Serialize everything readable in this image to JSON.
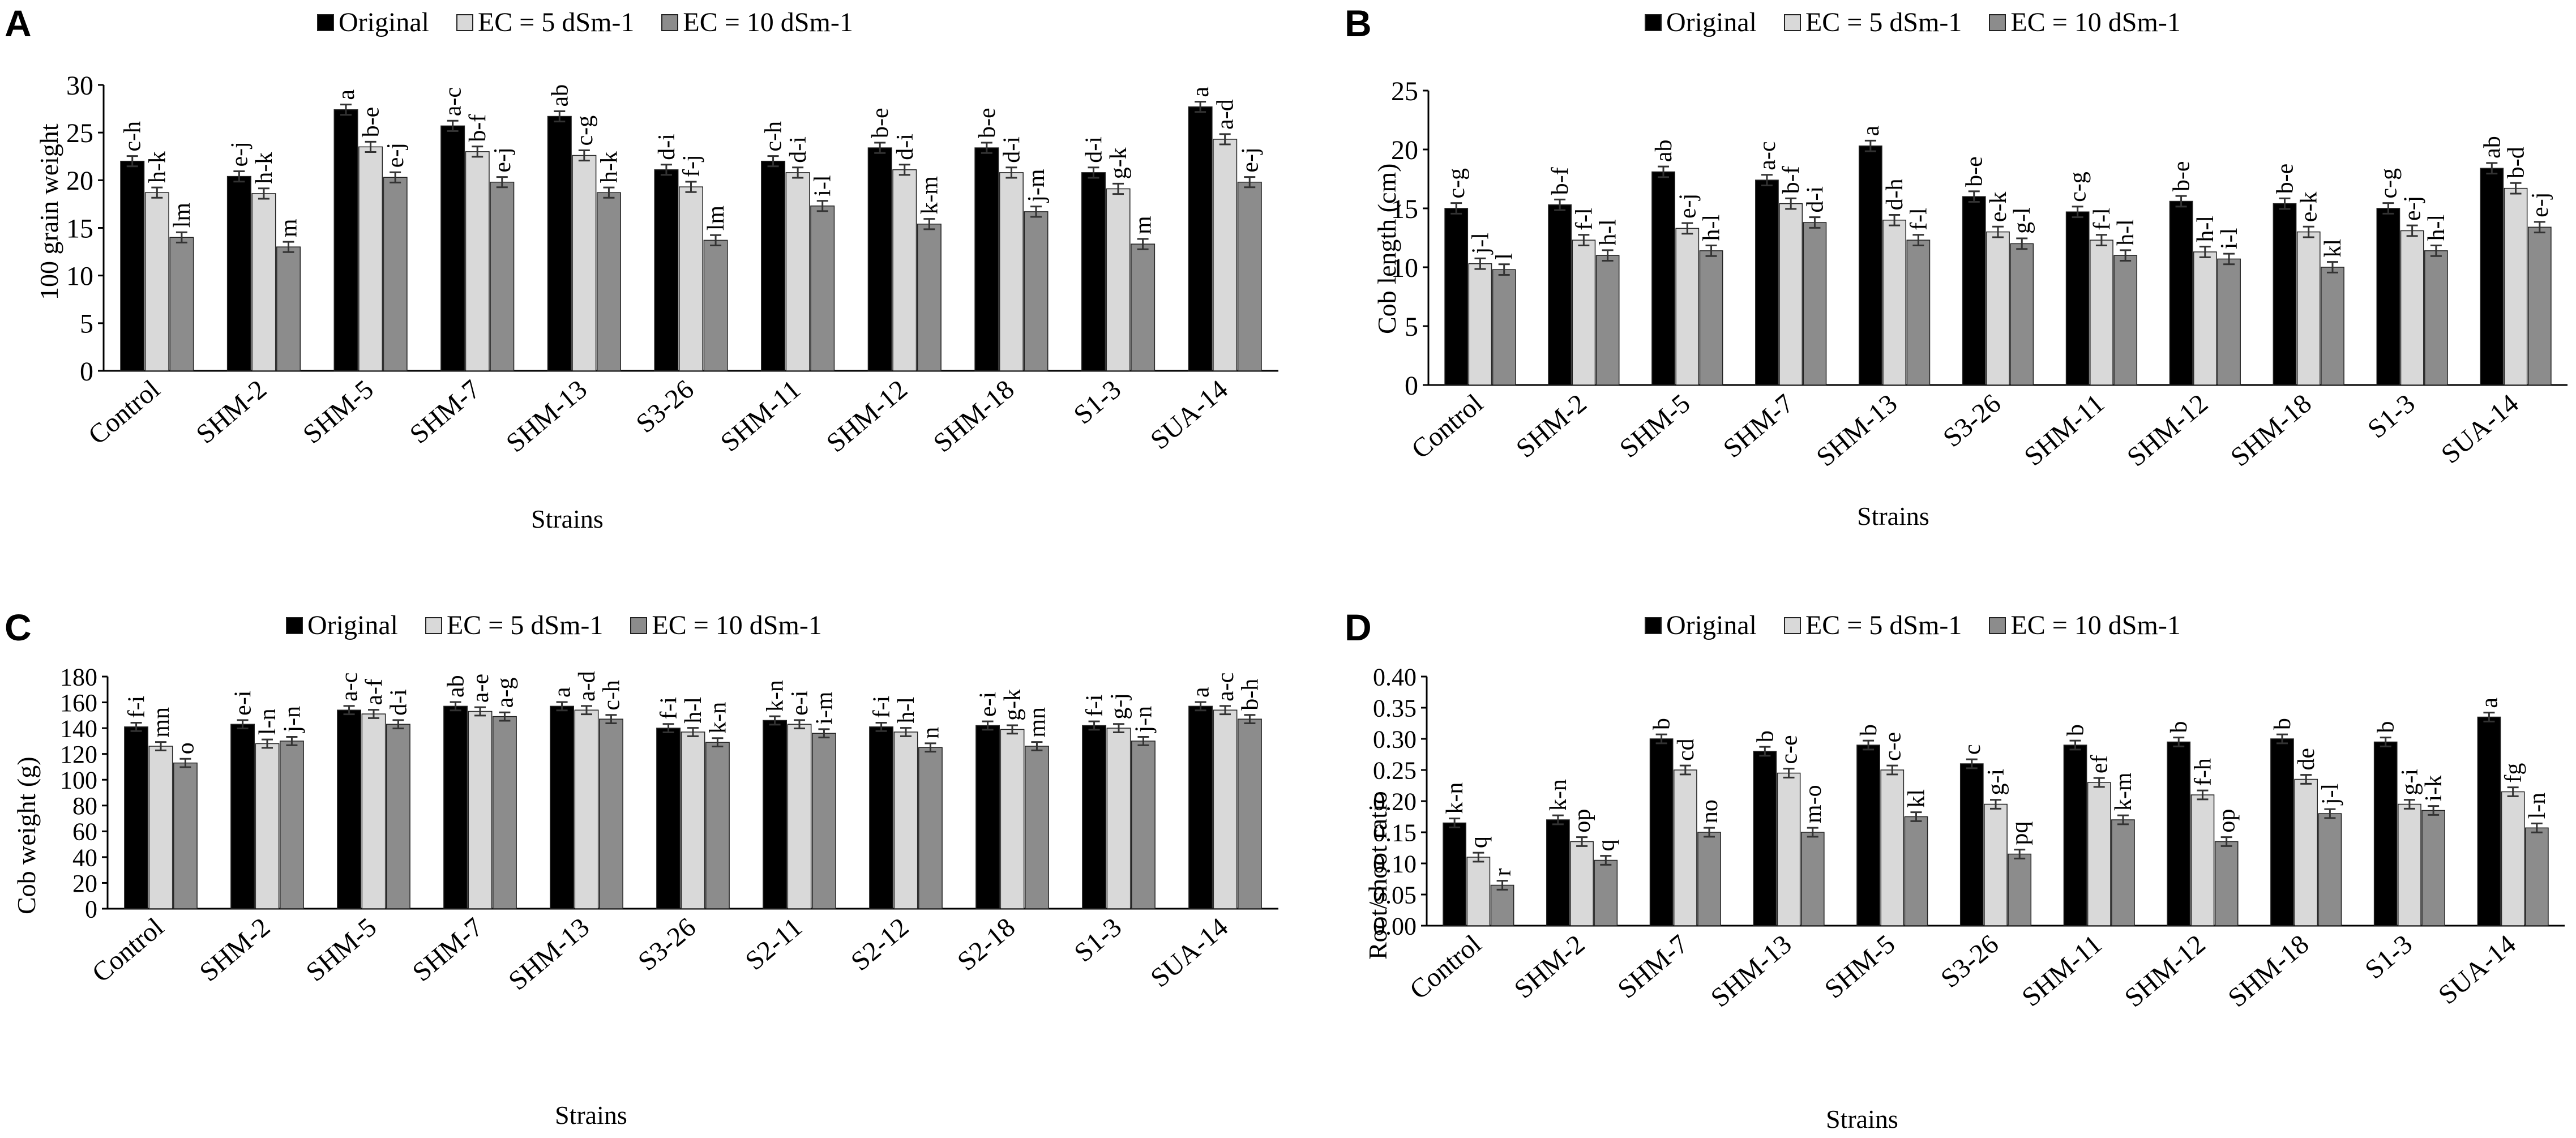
{
  "legend": {
    "series": [
      "Original",
      "EC = 5 dSm-1",
      "EC = 10 dSm-1"
    ],
    "colors": [
      "#000000",
      "#d9d9d9",
      "#8c8c8c"
    ]
  },
  "chart_data": [
    {
      "panel": "A",
      "type": "bar",
      "title": "",
      "xlabel": "Strains",
      "ylabel": "100 grain weight",
      "ylim": [
        0,
        30
      ],
      "yticks": [
        "0",
        "5",
        "10",
        "15",
        "20",
        "25",
        "30"
      ],
      "categories": [
        "Control",
        "SHM-2",
        "SHM-5",
        "SHM-7",
        "SHM-13",
        "S3-26",
        "SHM-11",
        "SHM-12",
        "SHM-18",
        "S1-3",
        "SUA-14"
      ],
      "series": [
        {
          "name": "Original",
          "values": [
            22.0,
            20.4,
            27.4,
            25.7,
            26.7,
            21.1,
            22.0,
            23.4,
            23.4,
            20.8,
            27.7
          ],
          "labels": [
            "c-h",
            "e-j",
            "a",
            "a-c",
            "ab",
            "d-i",
            "c-h",
            "b-e",
            "b-e",
            "d-i",
            "a"
          ]
        },
        {
          "name": "EC = 5 dSm-1",
          "values": [
            18.7,
            18.6,
            23.5,
            23.0,
            22.6,
            19.3,
            20.8,
            21.1,
            20.8,
            19.1,
            24.3
          ],
          "labels": [
            "h-k",
            "h-k",
            "b-e",
            "b-f",
            "c-g",
            "f-j",
            "d-i",
            "d-i",
            "d-i",
            "g-k",
            "a-d"
          ]
        },
        {
          "name": "EC = 10 dSm-1",
          "values": [
            14.0,
            13.0,
            20.3,
            19.8,
            18.7,
            13.7,
            17.3,
            15.4,
            16.7,
            13.3,
            19.8
          ],
          "labels": [
            "lm",
            "m",
            "e-j",
            "e-j",
            "h-k",
            "lm",
            "i-l",
            "k-m",
            "j-m",
            "m",
            "e-j"
          ]
        }
      ]
    },
    {
      "panel": "B",
      "type": "bar",
      "title": "",
      "xlabel": "Strains",
      "ylabel": "Cob length (cm)",
      "ylim": [
        0,
        25
      ],
      "yticks": [
        "0",
        "5",
        "10",
        "15",
        "20",
        "25"
      ],
      "categories": [
        "Control",
        "SHM-2",
        "SHM-5",
        "SHM-7",
        "SHM-13",
        "S3-26",
        "SHM-11",
        "SHM-12",
        "SHM-18",
        "S1-3",
        "SUA-14"
      ],
      "series": [
        {
          "name": "Original",
          "values": [
            15.0,
            15.3,
            18.1,
            17.4,
            20.3,
            16.0,
            14.7,
            15.6,
            15.4,
            15.0,
            18.4
          ],
          "labels": [
            "c-g",
            "b-f",
            "ab",
            "a-c",
            "a",
            "b-e",
            "c-g",
            "b-e",
            "b-e",
            "c-g",
            "ab"
          ]
        },
        {
          "name": "EC = 5 dSm-1",
          "values": [
            10.3,
            12.3,
            13.3,
            15.4,
            14.0,
            13.0,
            12.3,
            11.3,
            13.0,
            13.1,
            16.7
          ],
          "labels": [
            "j-l",
            "f-l",
            "e-j",
            "b-f",
            "d-h",
            "e-k",
            "f-l",
            "h-l",
            "e-k",
            "e-j",
            "b-d"
          ]
        },
        {
          "name": "EC = 10 dSm-1",
          "values": [
            9.8,
            11.0,
            11.4,
            13.8,
            12.3,
            12.0,
            11.0,
            10.7,
            10.0,
            11.4,
            13.4
          ],
          "labels": [
            "l",
            "h-l",
            "h-l",
            "d-i",
            "f-l",
            "g-l",
            "h-l",
            "i-l",
            "kl",
            "h-l",
            "e-j"
          ]
        }
      ]
    },
    {
      "panel": "C",
      "type": "bar",
      "title": "",
      "xlabel": "Strains",
      "ylabel": "Cob weight (g)",
      "ylim": [
        0,
        180
      ],
      "yticks": [
        "0",
        "20",
        "40",
        "60",
        "80",
        "100",
        "120",
        "140",
        "160",
        "180"
      ],
      "categories": [
        "Control",
        "SHM-2",
        "SHM-5",
        "SHM-7",
        "SHM-13",
        "S3-26",
        "S2-11",
        "S2-12",
        "S2-18",
        "S1-3",
        "SUA-14"
      ],
      "series": [
        {
          "name": "Original",
          "values": [
            141,
            143,
            154,
            157,
            157,
            140,
            146,
            141,
            142,
            142,
            157
          ],
          "labels": [
            "f-i",
            "e-i",
            "a-c",
            "ab",
            "a",
            "f-i",
            "k-n",
            "f-i",
            "e-i",
            "f-i",
            "a"
          ]
        },
        {
          "name": "EC = 5 dSm-1",
          "values": [
            126,
            128,
            151,
            153,
            154,
            137,
            143,
            137,
            139,
            140,
            154
          ],
          "labels": [
            "mn",
            "l-n",
            "a-f",
            "a-e",
            "a-d",
            "h-l",
            "e-i",
            "h-l",
            "g-k",
            "g-j",
            "a-c"
          ]
        },
        {
          "name": "EC = 10 dSm-1",
          "values": [
            113,
            130,
            143,
            149,
            147,
            129,
            136,
            125,
            126,
            130,
            147
          ],
          "labels": [
            "o",
            "j-n",
            "d-i",
            "a-g",
            "c-h",
            "k-n",
            "i-m",
            "n",
            "mn",
            "j-n",
            "b-h"
          ]
        }
      ],
      "annotation": "b-h"
    },
    {
      "panel": "D",
      "type": "bar",
      "title": "",
      "xlabel": "Strains",
      "ylabel": "Root/shoot ratio",
      "ylim": [
        0,
        0.4
      ],
      "yticks": [
        "0.00",
        "0.05",
        "0.10",
        "0.15",
        "0.20",
        "0.25",
        "0.30",
        "0.35",
        "0.40"
      ],
      "categories": [
        "Control",
        "SHM-2",
        "SHM-7",
        "SHM-13",
        "SHM-5",
        "S3-26",
        "SHM-11",
        "SHM-12",
        "SHM-18",
        "S1-3",
        "SUA-14"
      ],
      "series": [
        {
          "name": "Original",
          "values": [
            0.165,
            0.17,
            0.3,
            0.28,
            0.29,
            0.26,
            0.29,
            0.295,
            0.3,
            0.295,
            0.335
          ],
          "labels": [
            "k-n",
            "k-n",
            "b",
            "b",
            "b",
            "c",
            "b",
            "b",
            "b",
            "b",
            "a"
          ]
        },
        {
          "name": "EC = 5 dSm-1",
          "values": [
            0.11,
            0.135,
            0.25,
            0.245,
            0.25,
            0.195,
            0.23,
            0.21,
            0.235,
            0.195,
            0.215
          ],
          "labels": [
            "q",
            "op",
            "cd",
            "c-e",
            "c-e",
            "g-i",
            "ef",
            "f-h",
            "de",
            "g-i",
            "fg"
          ]
        },
        {
          "name": "EC = 10 dSm-1",
          "values": [
            0.065,
            0.105,
            0.15,
            0.15,
            0.175,
            0.115,
            0.17,
            0.135,
            0.18,
            0.185,
            0.157
          ],
          "labels": [
            "r",
            "q",
            "no",
            "m-o",
            "kl",
            "pq",
            "k-m",
            "op",
            "j-l",
            "i-k",
            "l-n"
          ]
        }
      ]
    }
  ]
}
